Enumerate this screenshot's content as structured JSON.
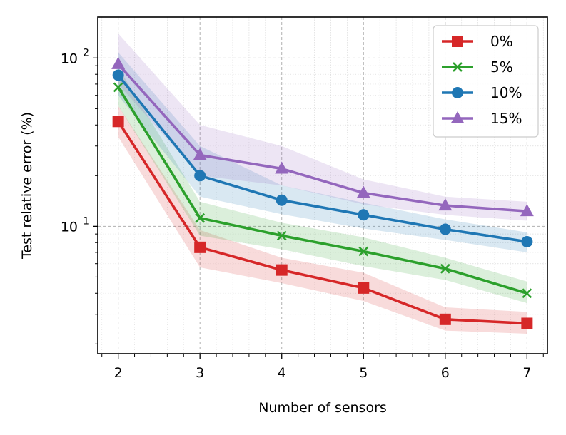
{
  "chart_data": {
    "type": "line",
    "title": "",
    "xlabel": "Number of sensors",
    "ylabel": "Test relative error (%)",
    "yscale": "log",
    "xlim": [
      1.75,
      7.25
    ],
    "ylim": [
      1.75,
      175
    ],
    "x": [
      2,
      3,
      4,
      5,
      6,
      7
    ],
    "x_ticks": [
      "2",
      "3",
      "4",
      "5",
      "6",
      "7"
    ],
    "y_ticks": [
      {
        "value": 10,
        "base": "10",
        "exp": "1"
      },
      {
        "value": 100,
        "base": "10",
        "exp": "2"
      }
    ],
    "grid": true,
    "legend_position": "top-right",
    "series": [
      {
        "name": "0%",
        "color": "#d62728",
        "marker": "square",
        "values": [
          42,
          7.5,
          5.5,
          4.3,
          2.8,
          2.65
        ],
        "lower": [
          34,
          5.7,
          4.6,
          3.6,
          2.4,
          2.3
        ],
        "upper": [
          52,
          9.5,
          6.5,
          5.3,
          3.3,
          3.1
        ]
      },
      {
        "name": "5%",
        "color": "#2ca02c",
        "marker": "x",
        "values": [
          67,
          11.2,
          8.8,
          7.1,
          5.6,
          4.0
        ],
        "lower": [
          52,
          8.8,
          7.3,
          5.8,
          4.8,
          3.5
        ],
        "upper": [
          88,
          14,
          10.5,
          8.6,
          6.5,
          4.7
        ]
      },
      {
        "name": "10%",
        "color": "#1f77b4",
        "marker": "circle",
        "values": [
          79,
          20,
          14.3,
          11.7,
          9.6,
          8.1
        ],
        "lower": [
          60,
          15,
          11.8,
          9.7,
          8.3,
          7.0
        ],
        "upper": [
          108,
          30,
          17.5,
          13.8,
          11.0,
          9.2
        ]
      },
      {
        "name": "15%",
        "color": "#9467bd",
        "marker": "triangle",
        "values": [
          92,
          26.5,
          22,
          15.8,
          13.3,
          12.3
        ],
        "lower": [
          70,
          20,
          17.5,
          13.5,
          11.7,
          10.8
        ],
        "upper": [
          140,
          40,
          30,
          19,
          15,
          14
        ]
      }
    ]
  }
}
